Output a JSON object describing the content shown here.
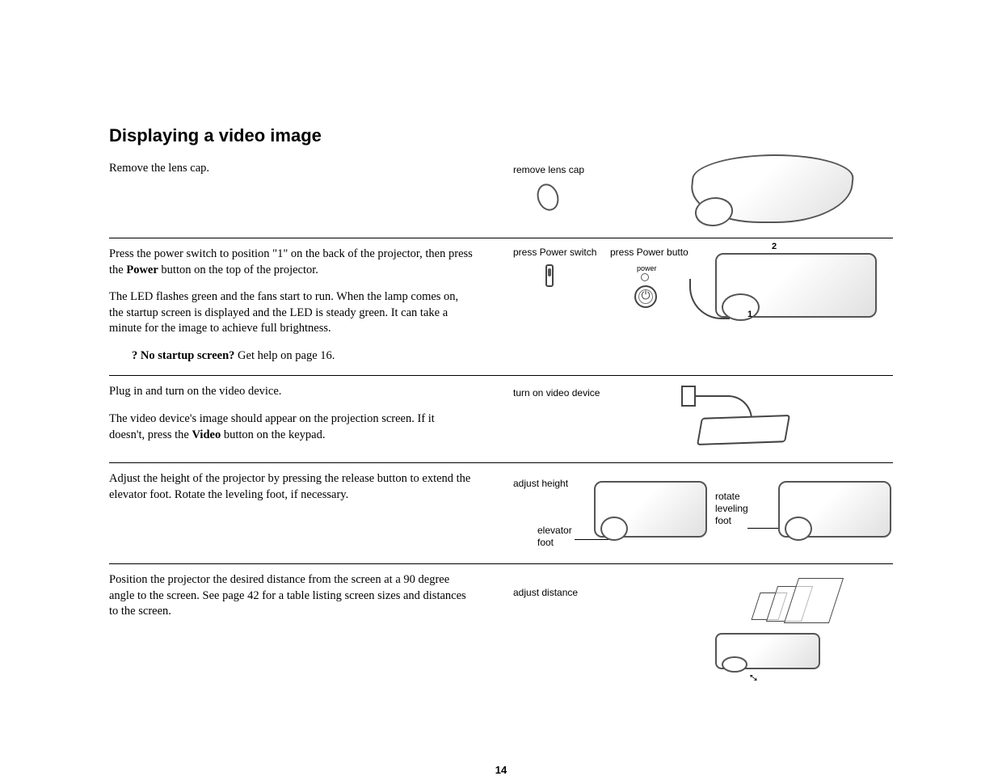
{
  "title": "Displaying a video image",
  "page_number": "14",
  "sections": [
    {
      "body": [
        {
          "html": "Remove the lens cap."
        }
      ],
      "captions": [
        {
          "key": "c1a",
          "text": "remove lens cap"
        }
      ]
    },
    {
      "body": [
        {
          "html": "Press the power switch to position \"1\" on the back of the projector, then press the <b>Power</b> button on the top of the projector."
        },
        {
          "html": "The LED flashes green and the fans start to run. When the lamp comes on, the startup screen is displayed and the LED is steady green. It can take a minute for the image to achieve full brightness."
        }
      ],
      "help": "<b>? No startup screen?</b> Get help on page 16.",
      "captions": [
        {
          "key": "c2a",
          "text": "press Power switch"
        },
        {
          "key": "c2b",
          "text": "press Power butto"
        },
        {
          "key": "c2c",
          "text": "power"
        },
        {
          "key": "c2d",
          "text": "2"
        },
        {
          "key": "c2e",
          "text": "1"
        }
      ]
    },
    {
      "body": [
        {
          "html": "Plug in and turn on the video device."
        },
        {
          "html": "The video device's image should appear on the projection screen. If it doesn't, press the <b>Video</b> button on the keypad."
        }
      ],
      "captions": [
        {
          "key": "c3a",
          "text": "turn on video device"
        }
      ]
    },
    {
      "body": [
        {
          "html": "Adjust the height of the projector by pressing the release button to extend the elevator foot. Rotate the leveling foot, if necessary."
        }
      ],
      "captions": [
        {
          "key": "c4a",
          "text": "adjust height"
        },
        {
          "key": "c4b",
          "text": "elevator\nfoot"
        },
        {
          "key": "c4c",
          "text": "rotate\nleveling\nfoot"
        }
      ]
    },
    {
      "body": [
        {
          "html": "Position the projector the desired distance from the screen at a 90 degree angle to the screen. See page 42 for a table listing screen sizes and distances to the screen."
        }
      ],
      "captions": [
        {
          "key": "c5a",
          "text": "adjust distance"
        }
      ]
    }
  ]
}
